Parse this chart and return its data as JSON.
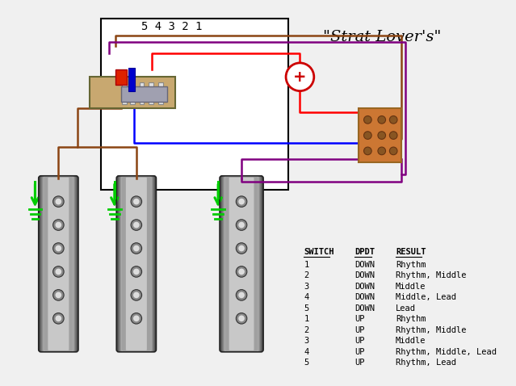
{
  "title": "\"Strat Lover's\"",
  "bg_color": "#f0f0f0",
  "switch_label": "5 4 3 2 1",
  "table_headers": [
    "SWITCH",
    "DPDT",
    "RESULT"
  ],
  "table_data": [
    [
      "1",
      "DOWN",
      "Rhythm"
    ],
    [
      "2",
      "DOWN",
      "Rhythm, Middle"
    ],
    [
      "3",
      "DOWN",
      "Middle"
    ],
    [
      "4",
      "DOWN",
      "Middle, Lead"
    ],
    [
      "5",
      "DOWN",
      "Lead"
    ],
    [
      "1",
      "UP",
      "Rhythm"
    ],
    [
      "2",
      "UP",
      "Rhythm, Middle"
    ],
    [
      "3",
      "UP",
      "Middle"
    ],
    [
      "4",
      "UP",
      "Rhythm, Middle, Lead"
    ],
    [
      "5",
      "UP",
      "Rhythm, Lead"
    ]
  ],
  "wire_colors": {
    "red": "#ff0000",
    "blue": "#0000ff",
    "brown": "#8B4513",
    "purple": "#800080",
    "green": "#00cc00",
    "orange": "#ff8c00"
  },
  "box_color": "#ffffff",
  "box_border": "#000000",
  "switch_body_color": "#b0a090",
  "pickup_gradient_dark": "#404040",
  "pickup_gradient_light": "#c0c0c0",
  "pot_color": "#cc6600",
  "capacitor_color": "#cc6600"
}
